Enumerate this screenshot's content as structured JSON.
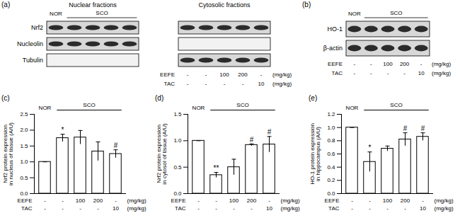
{
  "figure_panels": [
    {
      "label": "(a)",
      "rows": [
        "Nrf2",
        "Nucleolin",
        "Tubulin"
      ],
      "blots": [
        {
          "title": "Nuclear fractions",
          "bands": [
            true,
            true,
            false
          ]
        },
        {
          "title": "Cytosolic fractions",
          "bands": [
            true,
            false,
            true
          ]
        }
      ],
      "control_label": "NOR",
      "group_label": "SCO",
      "treatments": [
        {
          "name": "EEFE",
          "doses": [
            "-",
            "-",
            "100",
            "200",
            "-"
          ],
          "unit": "(mg/kg)"
        },
        {
          "name": "TAC",
          "doses": [
            "-",
            "-",
            "-",
            "-",
            "10"
          ],
          "unit": "(mg/kg)"
        }
      ]
    },
    {
      "label": "(b)",
      "rows": [
        "HO-1",
        "β-actin"
      ],
      "blots": [
        {
          "bands": [
            true,
            true
          ]
        }
      ],
      "control_label": "NOR",
      "group_label": "SCO",
      "treatments": [
        {
          "name": "EEFE",
          "doses": [
            "-",
            "-",
            "100",
            "200",
            "-"
          ],
          "unit": "(mg/kg)"
        },
        {
          "name": "TAC",
          "doses": [
            "-",
            "-",
            "-",
            "-",
            "10"
          ],
          "unit": "(mg/kg)"
        }
      ]
    }
  ],
  "chart_data": [
    {
      "type": "bar",
      "panel_label": "(c)",
      "ylabel": "Nrf2 protein expression\nin nucleus of tissue (A/U)",
      "categories": [
        null,
        null,
        null,
        null,
        null
      ],
      "values": [
        1.0,
        1.75,
        1.77,
        1.33,
        1.25
      ],
      "errors": [
        0.0,
        0.12,
        0.22,
        0.3,
        0.13
      ],
      "annotations": [
        null,
        "*",
        null,
        null,
        "#"
      ],
      "color": "#ffffff",
      "ylim": [
        0,
        2.5
      ],
      "yticks": [
        {
          "value": 0,
          "label": "0.0"
        },
        {
          "value": 0.5,
          "label": "0.5"
        },
        {
          "value": 1,
          "label": "1.0"
        },
        {
          "value": 1.5,
          "label": "1.5"
        },
        {
          "value": 2,
          "label": "2.0"
        },
        {
          "value": 2.5,
          "label": "2.5"
        }
      ],
      "tick_labels": "y",
      "control_label": "NOR",
      "group_label": "SCO",
      "treatments": [
        {
          "name": "EEFE",
          "doses": [
            "-",
            "-",
            "100",
            "200",
            "-"
          ],
          "unit": "(mg/kg)"
        },
        {
          "name": "TAC",
          "doses": [
            "-",
            "-",
            "-",
            "-",
            "10"
          ],
          "unit": "(mg/kg)"
        }
      ]
    },
    {
      "type": "bar",
      "panel_label": "(d)",
      "ylabel": "Nrf2 protein expression\nin cytosol of tissue (A/U)",
      "categories": [
        null,
        null,
        null,
        null,
        null
      ],
      "values": [
        1.0,
        0.35,
        0.5,
        0.92,
        0.93
      ],
      "errors": [
        0.0,
        0.05,
        0.15,
        0.02,
        0.15
      ],
      "annotations": [
        null,
        "**",
        null,
        "#",
        "#"
      ],
      "color": "#ffffff",
      "ylim": [
        0,
        1.5
      ],
      "yticks": [
        {
          "value": 0,
          "label": "0.0"
        },
        {
          "value": 0.5,
          "label": "0.5"
        },
        {
          "value": 1,
          "label": "1.0"
        },
        {
          "value": 1.5,
          "label": "1.5"
        }
      ],
      "tick_labels": "y",
      "control_label": "NOR",
      "group_label": "SCO",
      "treatments": [
        {
          "name": "EEFE",
          "doses": [
            "-",
            "-",
            "100",
            "200",
            "-"
          ],
          "unit": "(mg/kg)"
        },
        {
          "name": "TAC",
          "doses": [
            "-",
            "-",
            "-",
            "-",
            "10"
          ],
          "unit": "(mg/kg)"
        }
      ]
    },
    {
      "type": "bar",
      "panel_label": "(e)",
      "ylabel": "HO-1 protein expression\nin hippocampus (A/U)",
      "categories": [
        null,
        null,
        null,
        null,
        null
      ],
      "values": [
        1.0,
        0.48,
        0.68,
        0.82,
        0.86
      ],
      "errors": [
        0.0,
        0.15,
        0.04,
        0.1,
        0.06
      ],
      "annotations": [
        null,
        "*",
        null,
        "#",
        "#"
      ],
      "color": "#ffffff",
      "ylim": [
        0,
        1.2
      ],
      "yticks": [
        {
          "value": 0,
          "label": "0.0"
        },
        {
          "value": 0.2,
          "label": "0.2"
        },
        {
          "value": 0.4,
          "label": "0.4"
        },
        {
          "value": 0.6,
          "label": "0.6"
        },
        {
          "value": 0.8,
          "label": "0.8"
        },
        {
          "value": 1,
          "label": "1.0"
        },
        {
          "value": 1.2,
          "label": "1.2"
        }
      ],
      "tick_labels": "y",
      "control_label": "NOR",
      "group_label": "SCO",
      "treatments": [
        {
          "name": "EEFE",
          "doses": [
            "-",
            "-",
            "100",
            "200",
            "-"
          ],
          "unit": "(mg/kg)"
        },
        {
          "name": "TAC",
          "doses": [
            "-",
            "-",
            "-",
            "-",
            "10"
          ],
          "unit": "(mg/kg)"
        }
      ]
    }
  ]
}
